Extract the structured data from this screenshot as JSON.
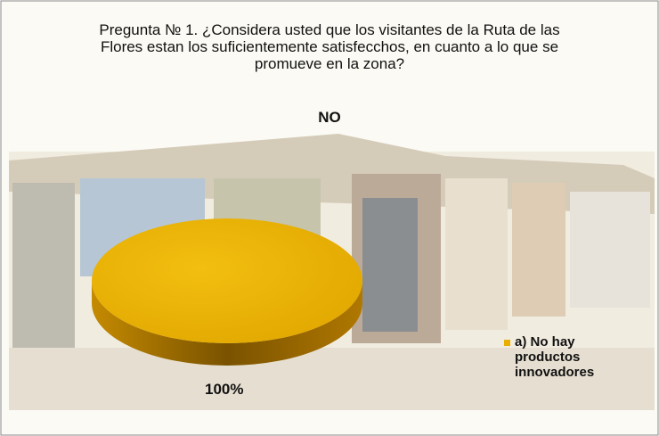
{
  "chart_data": {
    "type": "pie",
    "title": "Pregunta № 1. ¿Considera usted que los visitantes de la Ruta de las Flores estan los suficientemente satisfecchos, en cuanto a lo que se promueve en la zona?",
    "subtitle": "NO",
    "categories": [
      "a) No hay productos innovadores"
    ],
    "values": [
      100
    ],
    "value_labels": [
      "100%"
    ],
    "colors": [
      "#e8ae00"
    ],
    "legend": "right"
  }
}
